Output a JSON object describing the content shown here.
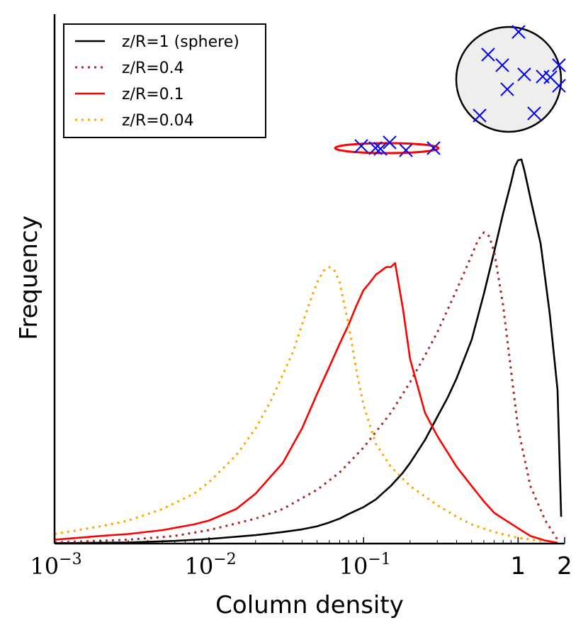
{
  "chart_data": {
    "type": "line",
    "xscale": "log",
    "xlim": [
      0.001,
      2
    ],
    "ylim": [
      0,
      1
    ],
    "xlabel": "Column density",
    "ylabel": "Frequency",
    "xticks": [
      {
        "value": 0.001,
        "base": "10",
        "exp": "−3"
      },
      {
        "value": 0.01,
        "base": "10",
        "exp": "−2"
      },
      {
        "value": 0.1,
        "base": "10",
        "exp": "−1"
      },
      {
        "value": 1,
        "label": "1"
      },
      {
        "value": 2,
        "label": "2"
      }
    ],
    "legend_position": "top-left",
    "series": [
      {
        "name": "z/R=1 (sphere)",
        "color": "#000000",
        "style": "solid",
        "x": [
          0.001,
          0.003,
          0.006,
          0.01,
          0.02,
          0.03,
          0.04,
          0.05,
          0.06,
          0.07,
          0.08,
          0.1,
          0.12,
          0.15,
          0.18,
          0.2,
          0.25,
          0.3,
          0.35,
          0.4,
          0.5,
          0.6,
          0.7,
          0.8,
          0.9,
          0.95,
          1.0,
          1.05,
          1.1,
          1.2,
          1.4,
          1.6,
          1.8,
          1.9
        ],
        "y": [
          0.001,
          0.003,
          0.007,
          0.012,
          0.022,
          0.03,
          0.037,
          0.045,
          0.055,
          0.065,
          0.077,
          0.095,
          0.115,
          0.15,
          0.185,
          0.21,
          0.27,
          0.33,
          0.38,
          0.43,
          0.53,
          0.65,
          0.76,
          0.86,
          0.94,
          0.98,
          0.998,
          1.0,
          0.97,
          0.9,
          0.78,
          0.6,
          0.4,
          0.07
        ]
      },
      {
        "name": "z/R=0.4",
        "color": "#a52a2a",
        "style": "dotted",
        "x": [
          0.001,
          0.003,
          0.006,
          0.01,
          0.02,
          0.03,
          0.05,
          0.07,
          0.1,
          0.15,
          0.2,
          0.25,
          0.3,
          0.4,
          0.5,
          0.55,
          0.6,
          0.65,
          0.7,
          0.8,
          0.9,
          1.0,
          1.2,
          1.5,
          1.8
        ],
        "y": [
          0.003,
          0.01,
          0.02,
          0.035,
          0.065,
          0.09,
          0.14,
          0.185,
          0.25,
          0.34,
          0.42,
          0.49,
          0.55,
          0.66,
          0.75,
          0.79,
          0.81,
          0.8,
          0.76,
          0.62,
          0.45,
          0.3,
          0.15,
          0.06,
          0.01
        ]
      },
      {
        "name": "z/R=0.1",
        "color": "#ff0000",
        "style": "solid",
        "x": [
          0.001,
          0.002,
          0.003,
          0.005,
          0.008,
          0.01,
          0.015,
          0.02,
          0.03,
          0.04,
          0.05,
          0.06,
          0.07,
          0.08,
          0.09,
          0.1,
          0.11,
          0.12,
          0.13,
          0.14,
          0.15,
          0.16,
          0.18,
          0.2,
          0.25,
          0.3,
          0.4,
          0.5,
          0.6,
          0.7,
          0.8,
          1.0,
          1.2,
          1.5,
          1.8
        ],
        "y": [
          0.01,
          0.02,
          0.025,
          0.035,
          0.05,
          0.06,
          0.09,
          0.13,
          0.21,
          0.3,
          0.39,
          0.46,
          0.52,
          0.57,
          0.62,
          0.66,
          0.68,
          0.7,
          0.71,
          0.72,
          0.72,
          0.73,
          0.61,
          0.48,
          0.34,
          0.28,
          0.2,
          0.15,
          0.11,
          0.08,
          0.065,
          0.04,
          0.02,
          0.008,
          0.002
        ]
      },
      {
        "name": "z/R=0.04",
        "color": "#ffa500",
        "style": "dotted",
        "x": [
          0.001,
          0.002,
          0.003,
          0.005,
          0.008,
          0.01,
          0.015,
          0.02,
          0.025,
          0.03,
          0.035,
          0.04,
          0.045,
          0.05,
          0.055,
          0.06,
          0.065,
          0.07,
          0.08,
          0.09,
          0.1,
          0.12,
          0.15,
          0.2,
          0.3,
          0.4,
          0.5,
          0.7,
          1.0,
          1.5
        ],
        "y": [
          0.025,
          0.045,
          0.06,
          0.09,
          0.13,
          0.16,
          0.23,
          0.3,
          0.37,
          0.44,
          0.5,
          0.57,
          0.63,
          0.68,
          0.71,
          0.72,
          0.71,
          0.68,
          0.57,
          0.45,
          0.36,
          0.26,
          0.2,
          0.15,
          0.1,
          0.07,
          0.05,
          0.03,
          0.015,
          0.005
        ]
      }
    ]
  },
  "insets": {
    "sphere": {
      "fill": "#eeeeee",
      "marker_color": "#0000ff"
    },
    "disk": {
      "color": "#ff0000",
      "marker_color": "#0000ff"
    }
  }
}
